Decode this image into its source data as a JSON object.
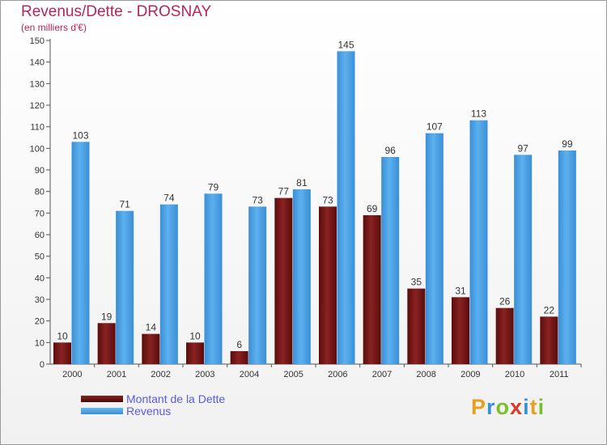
{
  "header": {
    "title": "Revenus/Dette - DROSNAY",
    "subtitle": "(en milliers d'€)"
  },
  "legend": {
    "debt_label": "Montant de la Dette",
    "revenue_label": "Revenus"
  },
  "logo": {
    "letters": [
      "P",
      "r",
      "o",
      "x",
      "i",
      "t",
      "i"
    ],
    "colors": [
      "#e8a020",
      "#3a8fd8",
      "#7bbf2a",
      "#d83a2a",
      "#3a8fd8",
      "#e8a020",
      "#7bbf2a"
    ]
  },
  "colors": {
    "debt": "#7a1a1a",
    "revenue": "#4ea3e4",
    "accent_text": "#b5245c",
    "legend_text": "#5a5ae0"
  },
  "chart_data": {
    "type": "bar",
    "title": "Revenus/Dette - DROSNAY",
    "subtitle": "(en milliers d'€)",
    "categories": [
      "2000",
      "2001",
      "2002",
      "2003",
      "2004",
      "2005",
      "2006",
      "2007",
      "2008",
      "2009",
      "2010",
      "2011"
    ],
    "series": [
      {
        "name": "Montant de la Dette",
        "values": [
          10,
          19,
          14,
          10,
          6,
          77,
          73,
          69,
          35,
          31,
          26,
          22
        ]
      },
      {
        "name": "Revenus",
        "values": [
          103,
          71,
          74,
          79,
          73,
          81,
          145,
          96,
          107,
          113,
          97,
          99
        ]
      }
    ],
    "ylim": [
      0,
      150
    ],
    "yticks": [
      0,
      10,
      20,
      30,
      40,
      50,
      60,
      70,
      80,
      90,
      100,
      110,
      120,
      130,
      140,
      150
    ],
    "grid": false,
    "legend_position": "bottom-left"
  }
}
